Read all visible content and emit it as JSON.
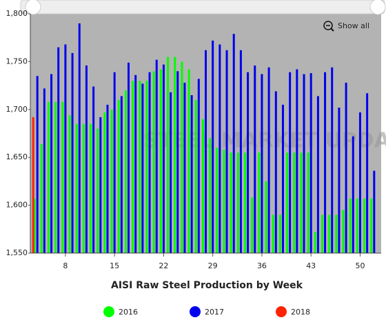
{
  "chart_data": {
    "type": "bar",
    "title": "AISI Raw Steel Production by Week",
    "watermark": "STEEL MARKET UPDATE",
    "button": "Show all",
    "x": [
      4,
      5,
      6,
      7,
      8,
      9,
      10,
      11,
      12,
      13,
      14,
      15,
      16,
      17,
      18,
      19,
      20,
      21,
      22,
      23,
      24,
      25,
      26,
      27,
      28,
      29,
      30,
      31,
      32,
      33,
      34,
      35,
      36,
      37,
      38,
      39,
      40,
      41,
      42,
      43,
      44,
      45,
      46,
      47,
      48,
      49,
      50,
      51,
      52
    ],
    "series": [
      {
        "name": "2016",
        "color": "#00ff00",
        "values": [
          1607,
          1664,
          1708,
          1708,
          1708,
          1694,
          1685,
          1685,
          1685,
          1680,
          1697,
          1700,
          1710,
          1720,
          1730,
          1730,
          1730,
          1740,
          1742,
          1755,
          1755,
          1750,
          1742,
          1710,
          1690,
          1670,
          1660,
          1658,
          1655,
          1655,
          1655,
          1608,
          1655,
          1625,
          1590,
          1590,
          1655,
          1655,
          1655,
          1655,
          1572,
          1590,
          1590,
          1590,
          1595,
          1607,
          1607,
          1607,
          1607
        ]
      },
      {
        "name": "2017",
        "color": "#0000ee",
        "values": [
          1735,
          1722,
          1737,
          1765,
          1768,
          1759,
          1790,
          1746,
          1724,
          1692,
          1705,
          1739,
          1714,
          1749,
          1736,
          1727,
          1739,
          1752,
          1747,
          1718,
          1740,
          1728,
          1715,
          1732,
          1762,
          1772,
          1768,
          1762,
          1779,
          1762,
          1739,
          1746,
          1737,
          1744,
          1719,
          1705,
          1739,
          1742,
          1737,
          1738,
          1714,
          1739,
          1744,
          1702,
          1728,
          1672,
          1697,
          1717,
          1636
        ]
      },
      {
        "name": "2018",
        "color": "#ff2200",
        "values": [
          1692,
          null,
          null,
          null,
          null,
          null,
          null,
          null,
          null,
          null,
          null,
          null,
          null,
          null,
          null,
          null,
          null,
          null,
          null,
          null,
          null,
          null,
          null,
          null,
          null,
          null,
          null,
          null,
          null,
          null,
          null,
          null,
          null,
          null,
          null,
          null,
          null,
          null,
          null,
          null,
          null,
          null,
          null,
          null,
          null,
          null,
          null,
          null,
          null
        ]
      }
    ],
    "xlim": [
      3,
      53
    ],
    "xticks": [
      8,
      15,
      22,
      29,
      36,
      43,
      50
    ],
    "ylim": [
      1550,
      1800
    ],
    "yticks": [
      {
        "value": 1550,
        "label": "1,550"
      },
      {
        "value": 1600,
        "label": "1,600"
      },
      {
        "value": 1650,
        "label": "1,650"
      },
      {
        "value": 1700,
        "label": "1,700"
      },
      {
        "value": 1750,
        "label": "1,750"
      },
      {
        "value": 1800,
        "label": "1,800"
      }
    ],
    "legend": "bottom"
  }
}
